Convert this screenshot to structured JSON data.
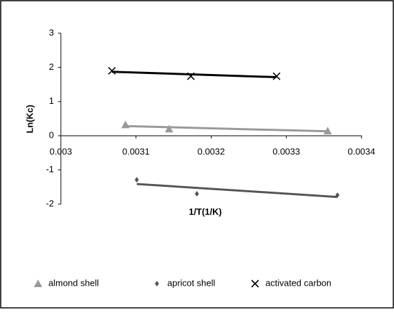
{
  "chart_data": {
    "type": "scatter",
    "x_label": "1/T(1/K)",
    "y_label": "Ln(Kc)",
    "xlim": [
      0.003,
      0.0034
    ],
    "xticks": [
      0.003,
      0.0031,
      0.0032,
      0.0033,
      0.0034
    ],
    "ylim": [
      -2,
      3
    ],
    "yticks": [
      -2,
      -1,
      0,
      1,
      2,
      3
    ],
    "trendlines": true,
    "legend": "bottom",
    "series": [
      {
        "name": "almond shell",
        "color": "#999999",
        "marker": "triangle",
        "x": [
          0.003086,
          0.003144,
          0.003355
        ],
        "values": [
          0.32,
          0.2,
          0.14
        ]
      },
      {
        "name": "apricot shell",
        "color": "#555555",
        "marker": "diamond",
        "x": [
          0.003101,
          0.003181,
          0.003368
        ],
        "values": [
          -1.29,
          -1.7,
          -1.74
        ]
      },
      {
        "name": "activated carbon",
        "color": "#000000",
        "marker": "x",
        "x": [
          0.003068,
          0.003173,
          0.003287
        ],
        "values": [
          1.9,
          1.74,
          1.74
        ]
      }
    ]
  }
}
